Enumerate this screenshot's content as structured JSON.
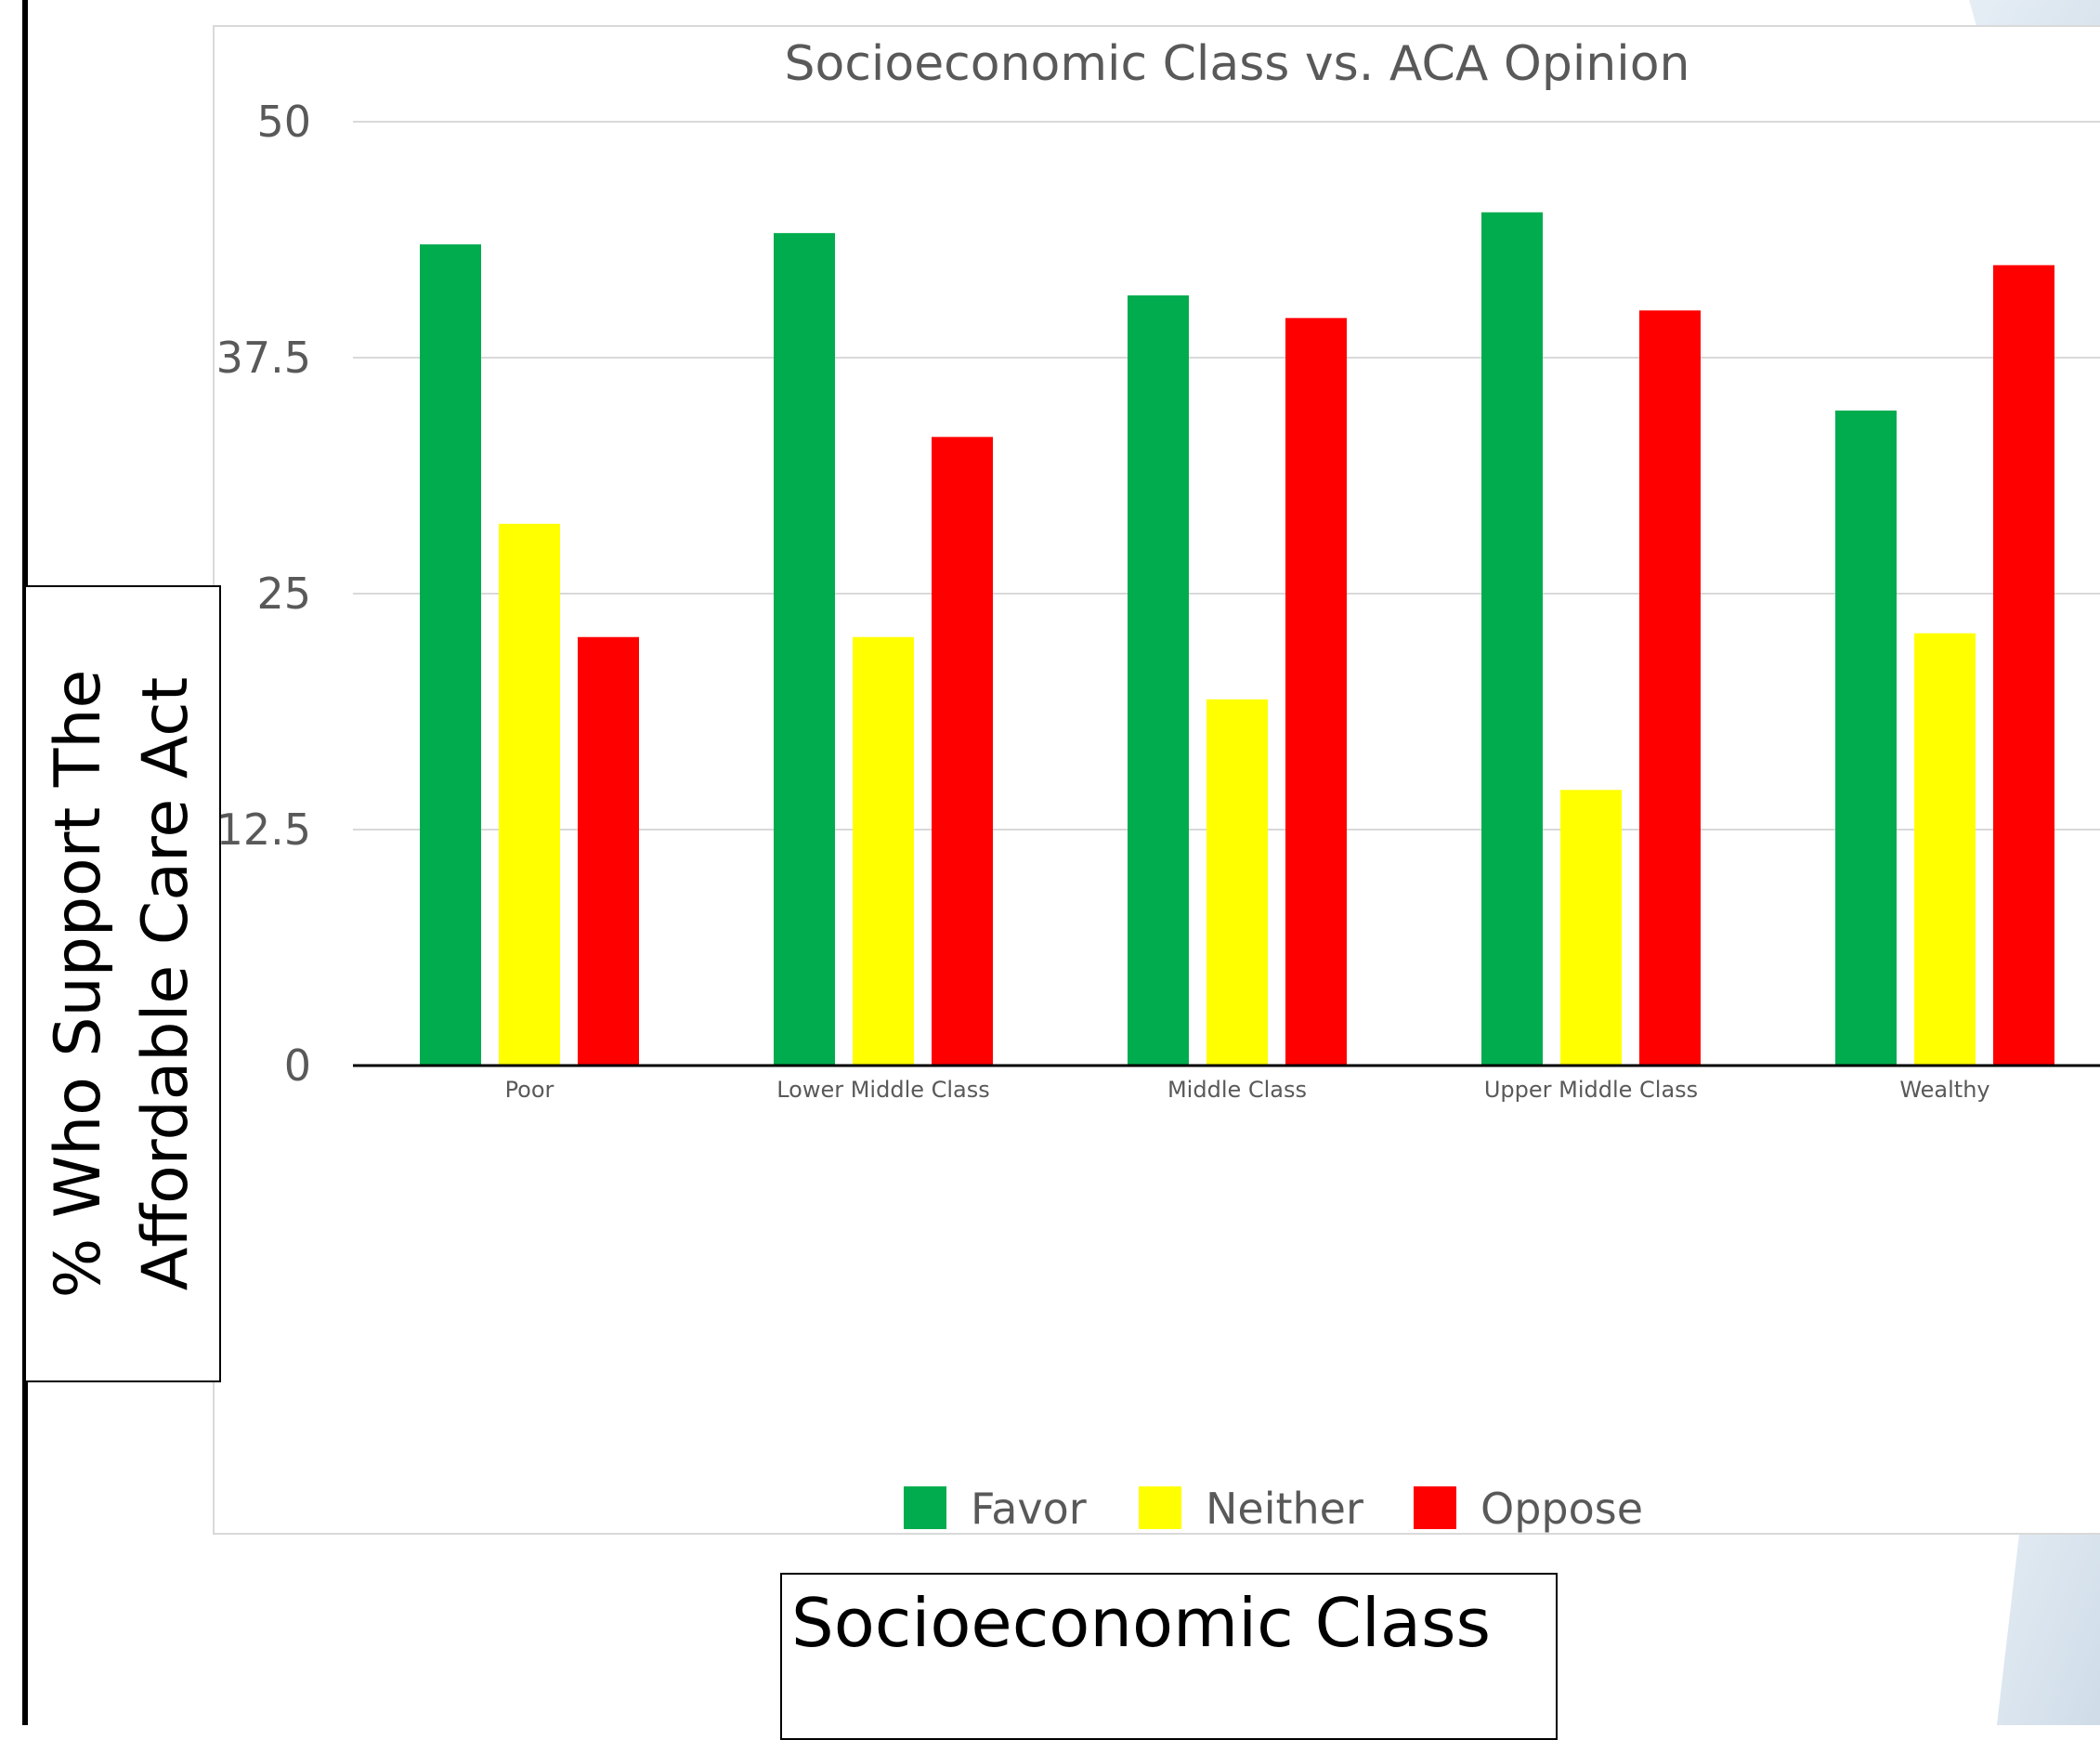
{
  "chart_data": {
    "type": "bar",
    "title": "Socioeconomic Class vs. ACA Opinion",
    "xlabel": "Socioeconomic Class",
    "ylabel": "% Who Support The\nAffordable Care Act",
    "categories": [
      "Poor",
      "Lower Middle Class",
      "Middle Class",
      "Upper Middle Class",
      "Wealthy"
    ],
    "series": [
      {
        "name": "Favor",
        "color": "#00ac4e",
        "values": [
          43.5,
          44.1,
          40.8,
          45.2,
          34.7
        ]
      },
      {
        "name": "Neither",
        "color": "#ffff00",
        "values": [
          28.7,
          22.7,
          19.4,
          14.6,
          22.9
        ]
      },
      {
        "name": "Oppose",
        "color": "#ff0000",
        "values": [
          22.7,
          33.3,
          39.6,
          40.0,
          42.4
        ]
      }
    ],
    "ylim": [
      0,
      50
    ],
    "yticks": [
      "0",
      "12.5",
      "25",
      "37.5",
      "50"
    ],
    "ytick_values": [
      0,
      12.5,
      25,
      37.5,
      50
    ],
    "grid": true,
    "legend": "bottom"
  }
}
